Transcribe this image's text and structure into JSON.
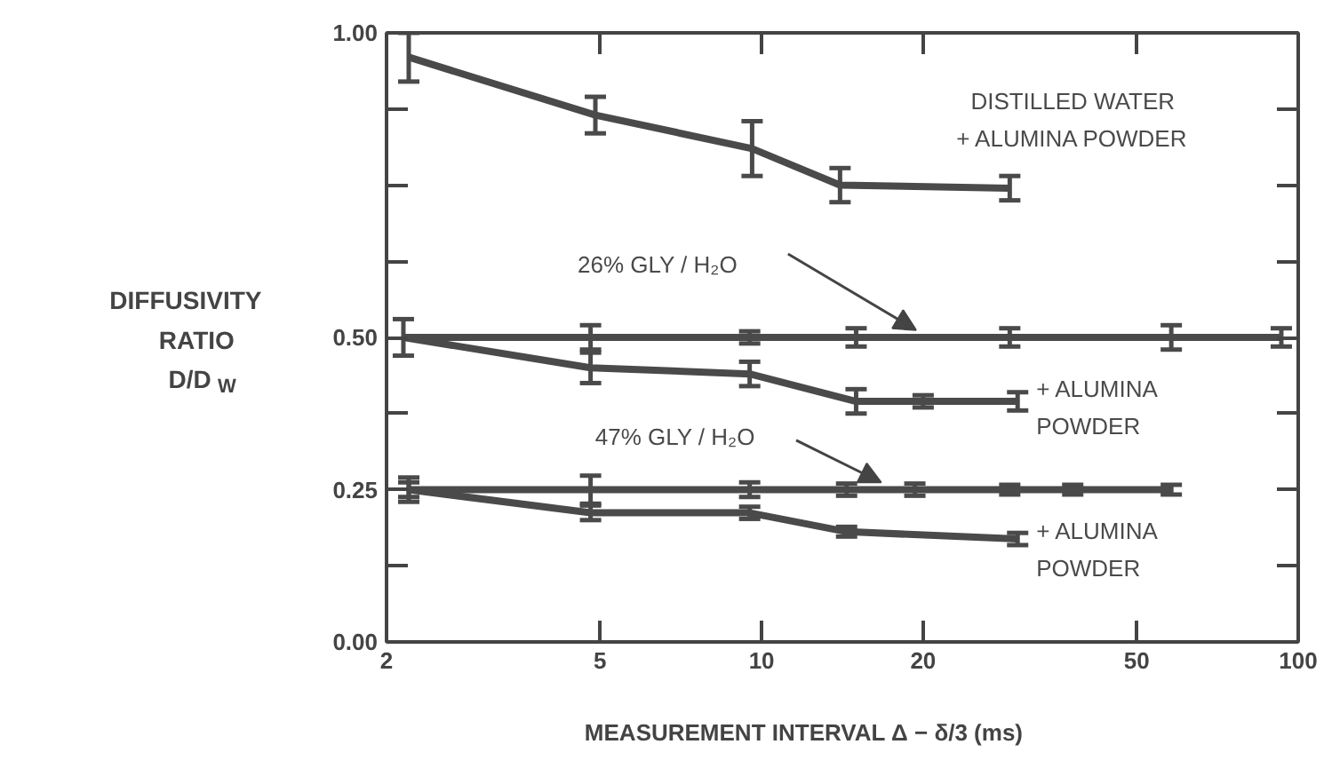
{
  "chart_data": {
    "type": "line",
    "xlabel": "MEASUREMENT INTERVAL Δ − δ/3 (ms)",
    "ylabel": "DIFFUSIVITY\nRATIO\nD/D$_{W}$",
    "log": "x",
    "xlim": [
      2,
      100
    ],
    "xticks": [
      2,
      5,
      10,
      20,
      50,
      100
    ],
    "ylim": [
      0,
      1.0
    ],
    "yticks": [
      {
        "value": 0,
        "label": "0.00"
      },
      {
        "value": 0.125,
        "label": null
      },
      {
        "value": 0.25,
        "label": "0.25"
      },
      {
        "value": 0.375,
        "label": null
      },
      {
        "value": 0.5,
        "label": "0.50"
      },
      {
        "value": 0.625,
        "label": null
      },
      {
        "value": 0.75,
        "label": null
      },
      {
        "value": 0.875,
        "label": null
      },
      {
        "value": 1.0,
        "label": "1.00"
      }
    ],
    "grid": false,
    "legend": false,
    "marker": "none",
    "line_style": "solid",
    "series": [
      {
        "name": "DISTILLED WATER\n+ ALUMINA POWDER",
        "color": "#4a4a4a",
        "x": [
          2.2,
          4.9,
          9.6,
          14,
          29
        ],
        "values": [
          0.96,
          0.865,
          0.81,
          0.75,
          0.745
        ],
        "errors": [
          0.04,
          0.03,
          0.045,
          0.028,
          0.02
        ]
      },
      {
        "name": "26% GLY / H₂O",
        "color": "#4a4a4a",
        "x": [
          2.15,
          4.8,
          9.5,
          15,
          29,
          58,
          93
        ],
        "values": [
          0.5,
          0.5,
          0.5,
          0.5,
          0.5,
          0.5,
          0.5
        ],
        "errors": [
          0.03,
          0.02,
          0.01,
          0.015,
          0.015,
          0.02,
          0.015
        ]
      },
      {
        "name": "+ ALUMINA\nPOWDER",
        "color": "#4a4a4a",
        "x": [
          2.15,
          4.8,
          9.5,
          15,
          20,
          30
        ],
        "values": [
          0.5,
          0.45,
          0.44,
          0.395,
          0.395,
          0.395
        ],
        "errors": [
          null,
          0.025,
          0.02,
          0.02,
          0.01,
          0.015
        ]
      },
      {
        "name": "47% GLY / H₂O",
        "color": "#4a4a4a",
        "x": [
          2.2,
          4.8,
          9.5,
          14.4,
          19.3,
          29,
          38,
          58
        ],
        "values": [
          0.25,
          0.25,
          0.25,
          0.25,
          0.25,
          0.25,
          0.25,
          0.25
        ],
        "errors": [
          0.02,
          0.023,
          0.012,
          0.01,
          0.01,
          0.008,
          0.008,
          0.008
        ]
      },
      {
        "name": "+ ALUMINA\nPOWDER",
        "color": "#4a4a4a",
        "x": [
          2.2,
          4.8,
          9.5,
          14.4,
          30
        ],
        "values": [
          0.25,
          0.212,
          0.212,
          0.181,
          0.169
        ],
        "errors": [
          0.012,
          0.012,
          0.01,
          0.008,
          0.01
        ]
      }
    ]
  }
}
